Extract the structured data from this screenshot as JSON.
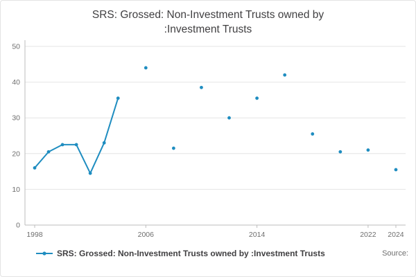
{
  "title_lines": [
    "SRS: Grossed: Non-Investment Trusts owned by",
    ":Investment Trusts"
  ],
  "legend": {
    "label": "SRS: Grossed: Non-Investment Trusts owned by :Investment Trusts"
  },
  "source_label": "Source:",
  "colors": {
    "accent": "#1f8dc0",
    "grid": "#e4e4e4",
    "axis": "#bcbcbc",
    "title_text": "#414042",
    "tick_text": "#6e6e6e"
  },
  "chart_data": {
    "type": "line",
    "title": "SRS: Grossed: Non-Investment Trusts owned by :Investment Trusts",
    "xlabel": "",
    "ylabel": "",
    "xlim": [
      1997.3,
      2024.7
    ],
    "ylim": [
      0,
      50
    ],
    "x_ticks": [
      1998,
      2006,
      2014,
      2022,
      2024
    ],
    "y_ticks": [
      0,
      10,
      20,
      30,
      40,
      50
    ],
    "grid": "horizontal",
    "legend_position": "bottom-left",
    "series": [
      {
        "name": "connected-segment",
        "style": "line+markers",
        "points": [
          [
            1998,
            16
          ],
          [
            1999,
            20.5
          ],
          [
            2000,
            22.5
          ],
          [
            2001,
            22.5
          ],
          [
            2002,
            14.5
          ],
          [
            2003,
            23
          ],
          [
            2004,
            35.5
          ]
        ]
      },
      {
        "name": "isolated-points",
        "style": "markers",
        "points": [
          [
            2006,
            44
          ],
          [
            2008,
            21.5
          ],
          [
            2010,
            38.5
          ],
          [
            2012,
            30
          ],
          [
            2014,
            35.5
          ],
          [
            2016,
            42
          ],
          [
            2018,
            25.5
          ],
          [
            2020,
            20.5
          ],
          [
            2022,
            21
          ],
          [
            2024,
            15.5
          ]
        ]
      }
    ]
  }
}
